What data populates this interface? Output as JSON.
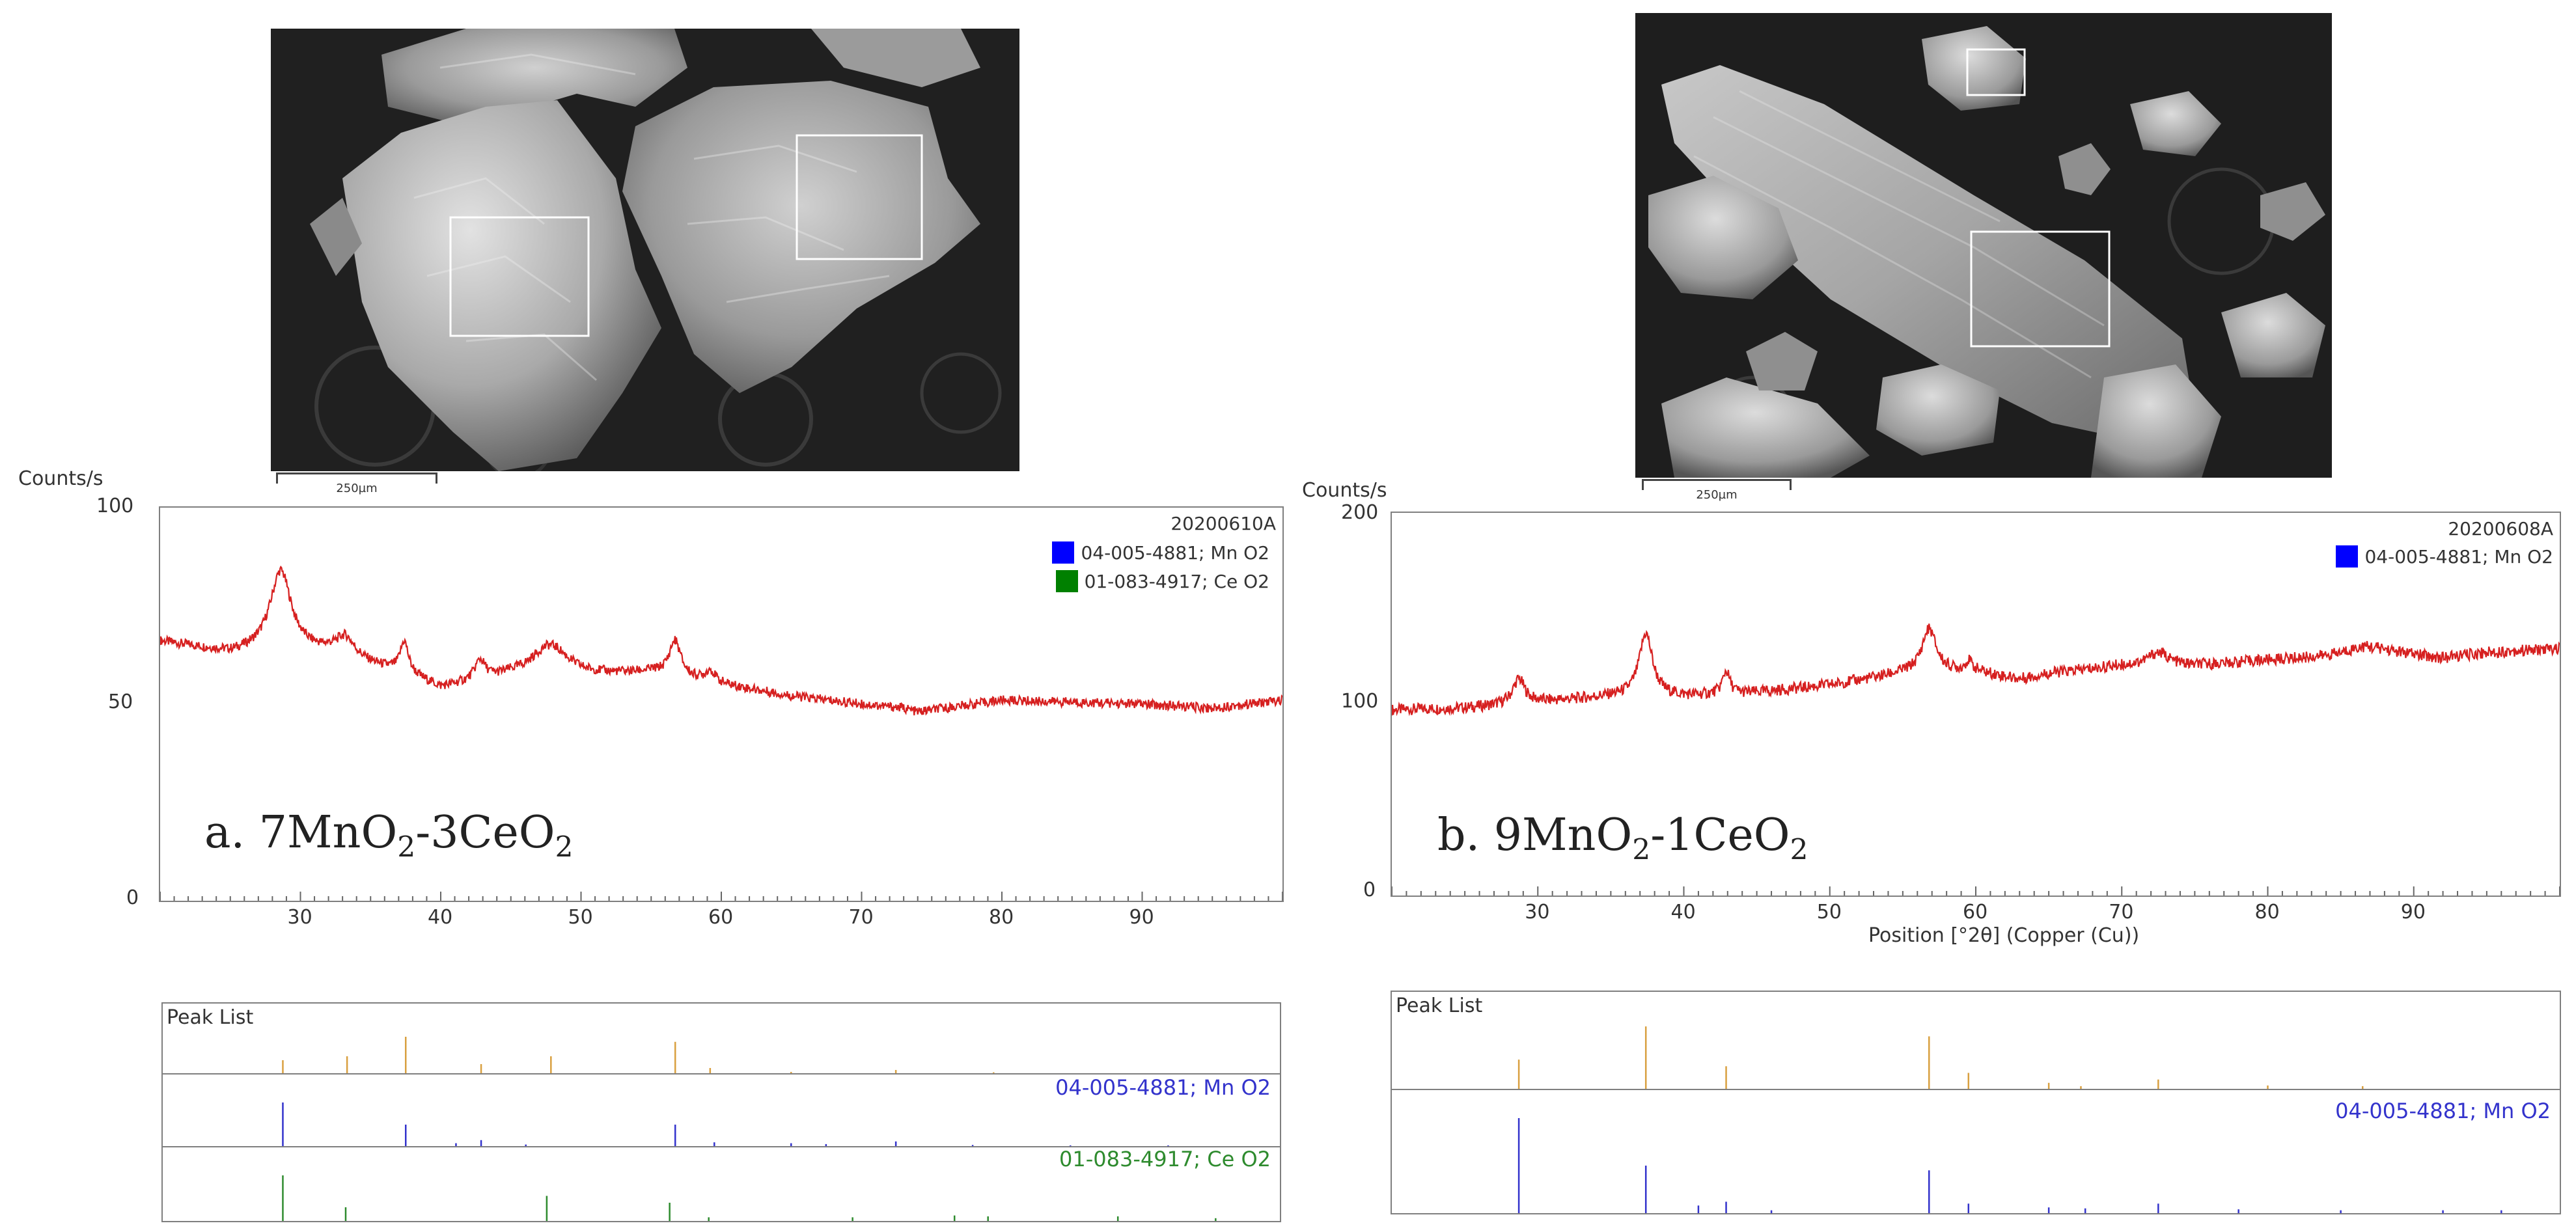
{
  "panels": [
    {
      "id": "a",
      "scale_label": "250µm",
      "y_axis_label": "Counts/s",
      "sample_id": "20200610A",
      "caption_prefix": "a. 7MnO",
      "caption_sub1": "2",
      "caption_mid": "-3CeO",
      "caption_sub2": "2",
      "y_ticks": [
        "100",
        "50",
        "0"
      ],
      "x_ticks": [
        "30",
        "40",
        "50",
        "60",
        "70",
        "80",
        "90"
      ],
      "x_axis_title": "",
      "legend": [
        {
          "label": "04-005-4881; Mn O2",
          "color": "#0000ff"
        },
        {
          "label": "01-083-4917; Ce O2",
          "color": "#008000"
        }
      ],
      "peak_list_title": "Peak List",
      "ref_rows": [
        {
          "label": "04-005-4881; Mn O2",
          "color": "#3333cc"
        },
        {
          "label": "01-083-4917; Ce O2",
          "color": "#2e8b2e"
        }
      ]
    },
    {
      "id": "b",
      "scale_label": "250µm",
      "y_axis_label": "Counts/s",
      "sample_id": "20200608A",
      "caption_prefix": "b. 9MnO",
      "caption_sub1": "2",
      "caption_mid": "-1CeO",
      "caption_sub2": "2",
      "y_ticks": [
        "200",
        "100",
        "0"
      ],
      "x_ticks": [
        "30",
        "40",
        "50",
        "60",
        "70",
        "80",
        "90"
      ],
      "x_axis_title": "Position [°2θ] (Copper (Cu))",
      "legend": [
        {
          "label": "04-005-4881; Mn O2",
          "color": "#0000ff"
        }
      ],
      "peak_list_title": "Peak List",
      "ref_rows": [
        {
          "label": "04-005-4881; Mn O2",
          "color": "#3333cc"
        }
      ]
    }
  ],
  "chart_data": [
    {
      "type": "line",
      "title": "a. 7MnO2-3CeO2",
      "xlabel": "",
      "ylabel": "Counts/s",
      "xlim": [
        20,
        100
      ],
      "ylim": [
        0,
        100
      ],
      "series_color": "#d62020",
      "baseline": [
        [
          20,
          66
        ],
        [
          25,
          63
        ],
        [
          28,
          64
        ],
        [
          32,
          63
        ],
        [
          35,
          60
        ],
        [
          38,
          57
        ],
        [
          40,
          54
        ],
        [
          45,
          57
        ],
        [
          50,
          57
        ],
        [
          55,
          58
        ],
        [
          60,
          55
        ],
        [
          65,
          52
        ],
        [
          70,
          50
        ],
        [
          73,
          49
        ],
        [
          74,
          48
        ],
        [
          80,
          51
        ],
        [
          90,
          50
        ],
        [
          95,
          49
        ],
        [
          100,
          51
        ]
      ],
      "peaks": [
        {
          "x": 28.6,
          "h": 20,
          "w": 0.9
        },
        {
          "x": 33.2,
          "h": 5,
          "w": 0.8
        },
        {
          "x": 37.4,
          "h": 8,
          "w": 0.35
        },
        {
          "x": 42.8,
          "h": 5,
          "w": 0.45
        },
        {
          "x": 47.8,
          "h": 8,
          "w": 1.6
        },
        {
          "x": 56.7,
          "h": 9,
          "w": 0.5
        },
        {
          "x": 59.2,
          "h": 3,
          "w": 0.4
        }
      ],
      "peak_list": {
        "sample": [
          {
            "x": 28.6,
            "h": 0.35
          },
          {
            "x": 33.2,
            "h": 0.45
          },
          {
            "x": 37.4,
            "h": 0.95
          },
          {
            "x": 42.8,
            "h": 0.25
          },
          {
            "x": 47.8,
            "h": 0.45
          },
          {
            "x": 56.7,
            "h": 0.82
          },
          {
            "x": 59.2,
            "h": 0.15
          },
          {
            "x": 65.0,
            "h": 0.05
          },
          {
            "x": 72.5,
            "h": 0.1
          },
          {
            "x": 79.5,
            "h": 0.04
          }
        ],
        "refs": [
          [
            {
              "x": 28.6,
              "h": 1.0
            },
            {
              "x": 37.4,
              "h": 0.5
            },
            {
              "x": 41.0,
              "h": 0.08
            },
            {
              "x": 42.8,
              "h": 0.15
            },
            {
              "x": 46.0,
              "h": 0.05
            },
            {
              "x": 56.7,
              "h": 0.5
            },
            {
              "x": 59.5,
              "h": 0.1
            },
            {
              "x": 65.0,
              "h": 0.08
            },
            {
              "x": 67.5,
              "h": 0.06
            },
            {
              "x": 72.5,
              "h": 0.12
            },
            {
              "x": 78.0,
              "h": 0.04
            },
            {
              "x": 85.0,
              "h": 0.03
            },
            {
              "x": 92.0,
              "h": 0.03
            }
          ],
          [
            {
              "x": 28.6,
              "h": 1.0
            },
            {
              "x": 33.1,
              "h": 0.3
            },
            {
              "x": 47.5,
              "h": 0.55
            },
            {
              "x": 56.3,
              "h": 0.4
            },
            {
              "x": 59.1,
              "h": 0.08
            },
            {
              "x": 69.4,
              "h": 0.08
            },
            {
              "x": 76.7,
              "h": 0.12
            },
            {
              "x": 79.1,
              "h": 0.1
            },
            {
              "x": 88.4,
              "h": 0.1
            },
            {
              "x": 95.4,
              "h": 0.06
            }
          ]
        ]
      }
    },
    {
      "type": "line",
      "title": "b. 9MnO2-1CeO2",
      "xlabel": "Position [°2θ] (Copper (Cu))",
      "ylabel": "Counts/s",
      "xlim": [
        20,
        100
      ],
      "ylim": [
        0,
        200
      ],
      "series_color": "#d62020",
      "baseline": [
        [
          20,
          97
        ],
        [
          25,
          98
        ],
        [
          30,
          101
        ],
        [
          35,
          104
        ],
        [
          40,
          104
        ],
        [
          45,
          106
        ],
        [
          50,
          110
        ],
        [
          55,
          116
        ],
        [
          60,
          117
        ],
        [
          63,
          113
        ],
        [
          65,
          116
        ],
        [
          70,
          120
        ],
        [
          75,
          120
        ],
        [
          80,
          123
        ],
        [
          85,
          125
        ],
        [
          88,
          127
        ],
        [
          92,
          124
        ],
        [
          95,
          127
        ],
        [
          100,
          129
        ]
      ],
      "peaks": [
        {
          "x": 28.7,
          "h": 13,
          "w": 0.5
        },
        {
          "x": 37.4,
          "h": 33,
          "w": 0.55
        },
        {
          "x": 42.9,
          "h": 12,
          "w": 0.3
        },
        {
          "x": 56.8,
          "h": 23,
          "w": 0.6
        },
        {
          "x": 59.5,
          "h": 5,
          "w": 0.3
        },
        {
          "x": 72.5,
          "h": 7,
          "w": 0.9
        },
        {
          "x": 86.5,
          "h": 4,
          "w": 1.5
        }
      ],
      "peak_list": {
        "sample": [
          {
            "x": 28.7,
            "h": 0.45
          },
          {
            "x": 37.4,
            "h": 0.95
          },
          {
            "x": 42.9,
            "h": 0.35
          },
          {
            "x": 56.8,
            "h": 0.8
          },
          {
            "x": 59.5,
            "h": 0.25
          },
          {
            "x": 65.0,
            "h": 0.1
          },
          {
            "x": 67.2,
            "h": 0.05
          },
          {
            "x": 72.5,
            "h": 0.15
          },
          {
            "x": 80.0,
            "h": 0.06
          },
          {
            "x": 86.5,
            "h": 0.05
          }
        ],
        "refs": [
          [
            {
              "x": 28.7,
              "h": 1.0
            },
            {
              "x": 37.4,
              "h": 0.5
            },
            {
              "x": 41.0,
              "h": 0.08
            },
            {
              "x": 42.9,
              "h": 0.12
            },
            {
              "x": 46.0,
              "h": 0.03
            },
            {
              "x": 56.8,
              "h": 0.45
            },
            {
              "x": 59.5,
              "h": 0.1
            },
            {
              "x": 65.0,
              "h": 0.06
            },
            {
              "x": 67.5,
              "h": 0.05
            },
            {
              "x": 72.5,
              "h": 0.1
            },
            {
              "x": 78.0,
              "h": 0.04
            },
            {
              "x": 85.0,
              "h": 0.03
            },
            {
              "x": 92.0,
              "h": 0.03
            },
            {
              "x": 96.0,
              "h": 0.03
            }
          ]
        ]
      }
    }
  ]
}
